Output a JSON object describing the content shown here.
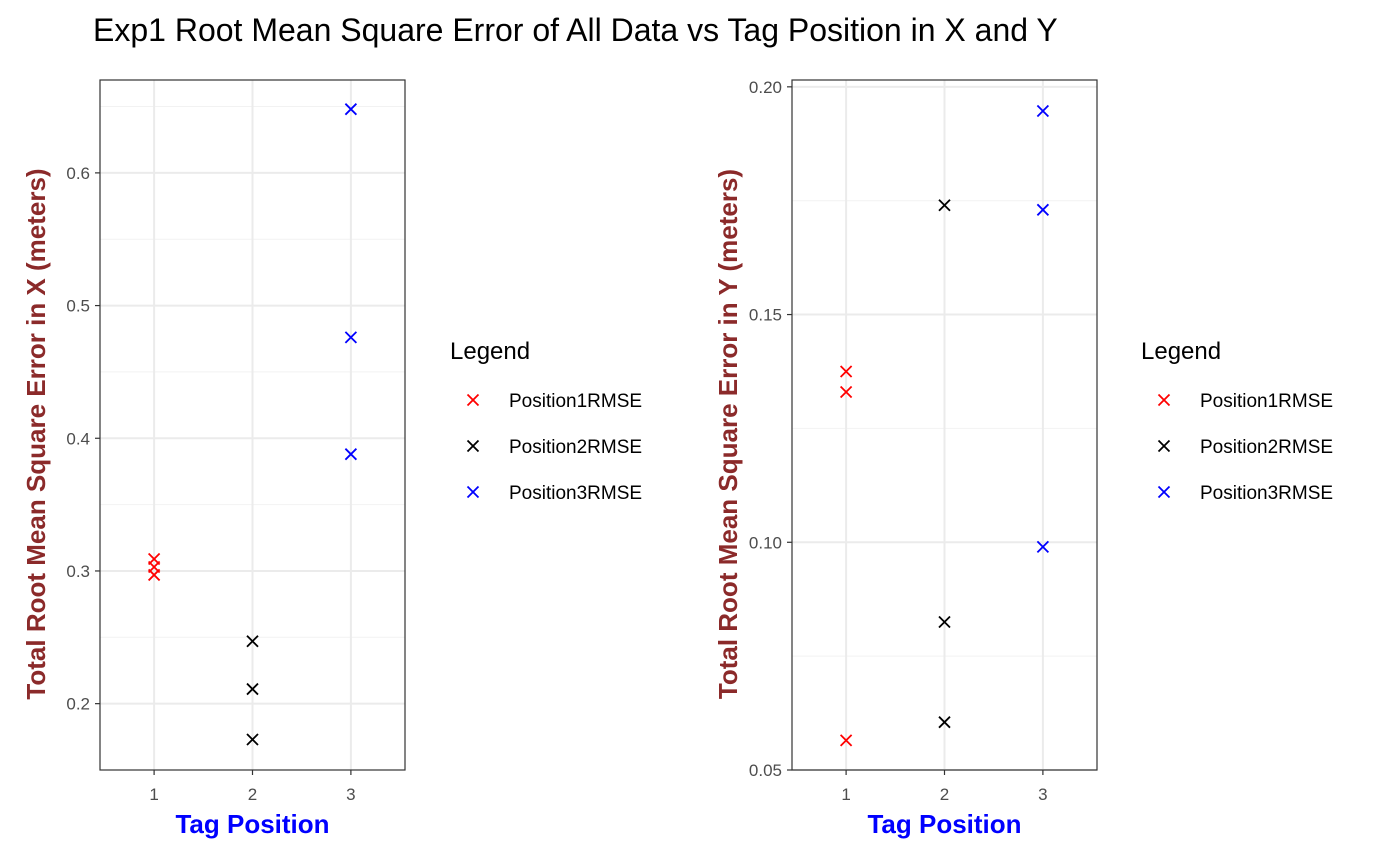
{
  "title": "Exp1 Root Mean Square Error of All Data vs Tag Position in X and Y",
  "colors": {
    "Position1RMSE": "#ff0000",
    "Position2RMSE": "#000000",
    "Position3RMSE": "#0000ff",
    "ylabel": "#8b2a2a",
    "xlabel": "#0000ff"
  },
  "chart_data": [
    {
      "type": "scatter",
      "marker": "x",
      "xlabel": "Tag Position",
      "ylabel": "Total Root Mean Square Error in X (meters)",
      "x_ticks": [
        "1",
        "2",
        "3"
      ],
      "y_ticks": [
        "0.2",
        "0.3",
        "0.4",
        "0.5",
        "0.6"
      ],
      "xlim": [
        0.45,
        3.55
      ],
      "ylim": [
        0.15,
        0.67
      ],
      "grid": true,
      "legend": {
        "title": "Legend",
        "entries": [
          "Position1RMSE",
          "Position2RMSE",
          "Position3RMSE"
        ],
        "placement": "right"
      },
      "series": [
        {
          "name": "Position1RMSE",
          "x": [
            1,
            1,
            1
          ],
          "y": [
            0.309,
            0.303,
            0.297
          ]
        },
        {
          "name": "Position2RMSE",
          "x": [
            2,
            2,
            2
          ],
          "y": [
            0.247,
            0.211,
            0.173
          ]
        },
        {
          "name": "Position3RMSE",
          "x": [
            3,
            3,
            3
          ],
          "y": [
            0.648,
            0.476,
            0.388
          ]
        }
      ]
    },
    {
      "type": "scatter",
      "marker": "x",
      "xlabel": "Tag Position",
      "ylabel": "Total Root Mean Square Error in Y (meters)",
      "x_ticks": [
        "1",
        "2",
        "3"
      ],
      "y_ticks": [
        "0.05",
        "0.10",
        "0.15",
        "0.20"
      ],
      "xlim": [
        0.45,
        3.55
      ],
      "ylim": [
        0.05,
        0.2015
      ],
      "grid": true,
      "legend": {
        "title": "Legend",
        "entries": [
          "Position1RMSE",
          "Position2RMSE",
          "Position3RMSE"
        ],
        "placement": "right"
      },
      "series": [
        {
          "name": "Position1RMSE",
          "x": [
            1,
            1,
            1
          ],
          "y": [
            0.1375,
            0.133,
            0.0565
          ]
        },
        {
          "name": "Position2RMSE",
          "x": [
            2,
            2,
            2
          ],
          "y": [
            0.174,
            0.0825,
            0.0605
          ]
        },
        {
          "name": "Position3RMSE",
          "x": [
            3,
            3,
            3
          ],
          "y": [
            0.1947,
            0.173,
            0.099
          ]
        }
      ]
    }
  ]
}
